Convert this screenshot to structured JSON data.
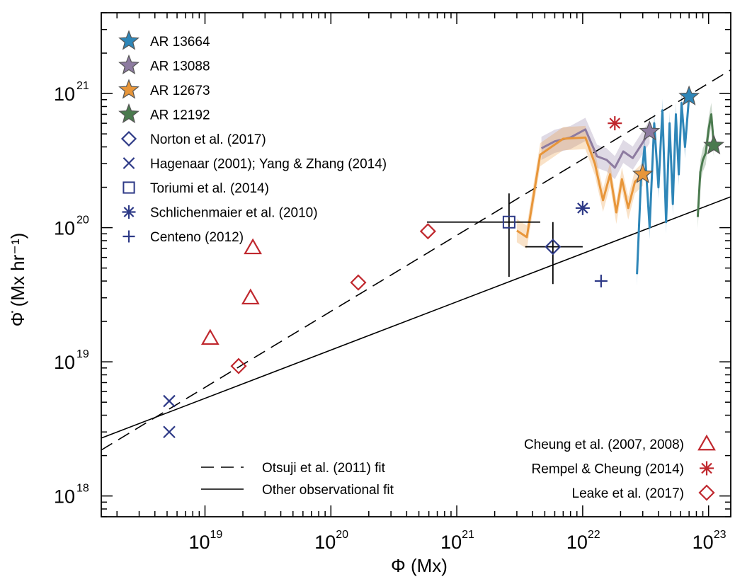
{
  "chart_data": {
    "type": "scatter",
    "xscale": "log",
    "yscale": "log",
    "xlim": [
      1.5e+18,
      1.5e+23
    ],
    "ylim": [
      7e+17,
      4e+21
    ],
    "xlabel": "Φ (Mx)",
    "ylabel": "Φ̇ (Mx hr⁻¹)",
    "x_ticks": [
      {
        "value": 1e+19,
        "base": "10",
        "exp": "19"
      },
      {
        "value": 1e+20,
        "base": "10",
        "exp": "20"
      },
      {
        "value": 1e+21,
        "base": "10",
        "exp": "21"
      },
      {
        "value": 1e+22,
        "base": "10",
        "exp": "22"
      },
      {
        "value": 1e+23,
        "base": "10",
        "exp": "23"
      }
    ],
    "y_ticks": [
      {
        "value": 1e+18,
        "base": "10",
        "exp": "18"
      },
      {
        "value": 1e+19,
        "base": "10",
        "exp": "19"
      },
      {
        "value": 1e+20,
        "base": "10",
        "exp": "20"
      },
      {
        "value": 1e+21,
        "base": "10",
        "exp": "21"
      }
    ],
    "fits": [
      {
        "name": "Otsuji et al. (2011) fit",
        "style": "dashed",
        "x": [
          1.5e+18,
          1.5e+23
        ],
        "y": [
          2.2e+18,
          1.5e+21
        ]
      },
      {
        "name": "Other observational fit",
        "style": "solid",
        "x": [
          1.5e+18,
          1.5e+23
        ],
        "y": [
          2.7e+18,
          1.7e+20
        ]
      }
    ],
    "series": [
      {
        "name": "AR 13664",
        "marker": "star",
        "color": "#2e86b8",
        "curve_x": [
          2.7e+22,
          2.9e+22,
          3.1e+22,
          3.4e+22,
          3.7e+22,
          4e+22,
          4.3e+22,
          4.6e+22,
          4.9e+22,
          5.2e+22,
          5.5e+22,
          5.8e+22,
          6.1e+22,
          6.5e+22,
          7e+22
        ],
        "curve_y": [
          4.5e+19,
          2.2e+20,
          4e+20,
          1e+20,
          6e+20,
          2e+20,
          7.5e+20,
          1.1e+20,
          6e+20,
          1.5e+20,
          7e+20,
          2.5e+20,
          8.5e+20,
          4e+20,
          9.5e+20
        ],
        "x": [
          7e+22
        ],
        "y": [
          9.5e+20
        ]
      },
      {
        "name": "AR 13088",
        "marker": "star",
        "color": "#8d7ba0",
        "curve_x": [
          4.7e+21,
          6e+21,
          8e+21,
          1.05e+22,
          1.3e+22,
          1.55e+22,
          1.8e+22,
          2.1e+22,
          2.5e+22,
          2.9e+22,
          3.4e+22
        ],
        "curve_y": [
          3.9e+20,
          4.4e+20,
          4.7e+20,
          5.4e+20,
          3.4e+20,
          3.2e+20,
          2.8e+20,
          3.7e+20,
          3.3e+20,
          4.1e+20,
          5.2e+20
        ],
        "x": [
          3.4e+22
        ],
        "y": [
          5.2e+20
        ]
      },
      {
        "name": "AR 12673",
        "marker": "star",
        "color": "#e8963a",
        "curve_x": [
          3e+21,
          3.6e+21,
          4.6e+21,
          7e+21,
          1.05e+22,
          1.25e+22,
          1.45e+22,
          1.65e+22,
          1.85e+22,
          2.05e+22,
          2.3e+22,
          2.6e+22,
          3e+22
        ],
        "curve_y": [
          9.5e+19,
          8.5e+19,
          3.5e+20,
          4.6e+20,
          4.7e+20,
          3e+20,
          1.6e+20,
          2.5e+20,
          1.3e+20,
          2.3e+20,
          1.4e+20,
          2.2e+20,
          2.5e+20
        ],
        "x": [
          3e+22
        ],
        "y": [
          2.5e+20
        ]
      },
      {
        "name": "AR 12192",
        "marker": "star",
        "color": "#4a7a4e",
        "curve_x": [
          8.2e+22,
          8.6e+22,
          9e+22,
          9.5e+22,
          1e+23,
          1.05e+23,
          1.1e+23
        ],
        "curve_y": [
          1.2e+20,
          2.6e+20,
          3.2e+20,
          3.6e+20,
          5.4e+20,
          7e+20,
          4.1e+20
        ],
        "x": [
          1.1e+23
        ],
        "y": [
          4.1e+20
        ]
      },
      {
        "name": "Norton et al. (2017)",
        "marker": "diamond",
        "color": "#2e3a87",
        "x": [
          5.8e+21
        ],
        "y": [
          7.2e+19
        ],
        "xerr": [
          3.5e+21,
          1e+22
        ],
        "yerr": [
          3.8e+19,
          1.1e+20
        ]
      },
      {
        "name": "Hagenaar (2001); Yang & Zhang (2014)",
        "marker": "x",
        "color": "#2e3a87",
        "x": [
          5.2e+18,
          5.2e+18
        ],
        "y": [
          5.1e+18,
          3e+18
        ]
      },
      {
        "name": "Toriumi et al. (2014)",
        "marker": "square",
        "color": "#2e3a87",
        "x": [
          2.6e+21
        ],
        "y": [
          1.1e+20
        ],
        "xerr": [
          5.8e+20,
          4.6e+21
        ],
        "yerr": [
          4.3e+19,
          1.8e+20
        ]
      },
      {
        "name": "Schlichenmaier et al. (2010)",
        "marker": "asterisk",
        "color": "#2e3a87",
        "x": [
          1e+22
        ],
        "y": [
          1.4e+20
        ]
      },
      {
        "name": "Centeno (2012)",
        "marker": "plus",
        "color": "#2e3a87",
        "x": [
          1.4e+22
        ],
        "y": [
          4e+19
        ]
      },
      {
        "name": "Cheung et al. (2007, 2008)",
        "marker": "triangle",
        "color": "#c0282e",
        "x": [
          1.1e+19,
          2.3e+19,
          2.4e+19
        ],
        "y": [
          1.5e+19,
          3e+19,
          7.1e+19
        ]
      },
      {
        "name": "Rempel & Cheung (2014)",
        "marker": "asterisk",
        "color": "#c0282e",
        "x": [
          1.8e+22
        ],
        "y": [
          6e+20
        ]
      },
      {
        "name": "Leake et al. (2017)",
        "marker": "diamond",
        "color": "#c0282e",
        "x": [
          1.85e+19,
          1.65e+20,
          5.9e+20
        ],
        "y": [
          9.3e+18,
          3.9e+19,
          9.4e+19
        ]
      }
    ],
    "legend_upper_left": [
      "AR 13664",
      "AR 13088",
      "AR 12673",
      "AR 12192",
      "Norton et al. (2017)",
      "Hagenaar (2001); Yang & Zhang (2014)",
      "Toriumi et al. (2014)",
      "Schlichenmaier et al. (2010)",
      "Centeno (2012)"
    ],
    "legend_lower_right": [
      "Cheung et al. (2007, 2008)",
      "Rempel & Cheung (2014)",
      "Leake et al. (2017)"
    ],
    "legend_lower_center": [
      "Otsuji et al. (2011) fit",
      "Other observational fit"
    ]
  }
}
